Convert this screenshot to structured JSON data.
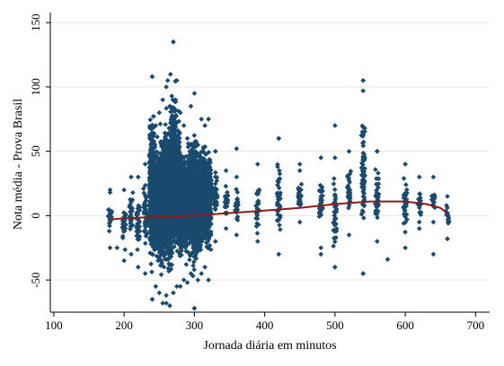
{
  "chart_data": {
    "type": "scatter",
    "title": "",
    "xlabel": "Jornada diária em minutos",
    "ylabel": "Nota média - Prova Brasil",
    "xlim": [
      95,
      720
    ],
    "ylim": [
      -75,
      155
    ],
    "x_ticks": [
      100,
      200,
      300,
      400,
      500,
      600,
      700
    ],
    "y_ticks": [
      -50,
      0,
      50,
      100,
      150
    ],
    "grid": true,
    "legend": "none",
    "colors": {
      "points": "#1a4a6e",
      "fit_line": "#8b1a1a",
      "grid": "#e6e6e6",
      "axis": "#000000"
    },
    "series": [
      {
        "marker": "diamond",
        "clusters": [
          {
            "x": 180,
            "ymin": -25,
            "ymax": 20
          },
          {
            "x": 200,
            "ymin": -35,
            "ymax": 20
          },
          {
            "x": 210,
            "ymin": -30,
            "ymax": 30
          },
          {
            "x": 220,
            "ymin": -40,
            "ymax": 30
          },
          {
            "x": 230,
            "ymin": -45,
            "ymax": 40
          },
          {
            "x": 240,
            "ymin": -65,
            "ymax": 108
          },
          {
            "x": 245,
            "ymin": -55,
            "ymax": 70
          },
          {
            "x": 250,
            "ymin": -60,
            "ymax": 80
          },
          {
            "x": 255,
            "ymin": -68,
            "ymax": 90
          },
          {
            "x": 260,
            "ymin": -62,
            "ymax": 100
          },
          {
            "x": 265,
            "ymin": -70,
            "ymax": 85
          },
          {
            "x": 270,
            "ymin": -60,
            "ymax": 135
          },
          {
            "x": 275,
            "ymin": -55,
            "ymax": 105
          },
          {
            "x": 280,
            "ymin": -55,
            "ymax": 80
          },
          {
            "x": 285,
            "ymin": -50,
            "ymax": 70
          },
          {
            "x": 290,
            "ymin": -52,
            "ymax": 60
          },
          {
            "x": 295,
            "ymin": -45,
            "ymax": 85
          },
          {
            "x": 300,
            "ymin": -72,
            "ymax": 95
          },
          {
            "x": 305,
            "ymin": -50,
            "ymax": 55
          },
          {
            "x": 310,
            "ymin": -45,
            "ymax": 75
          },
          {
            "x": 315,
            "ymin": -40,
            "ymax": 70
          },
          {
            "x": 320,
            "ymin": -50,
            "ymax": 75
          },
          {
            "x": 330,
            "ymin": -20,
            "ymax": 50
          },
          {
            "x": 345,
            "ymin": -10,
            "ymax": 35
          },
          {
            "x": 360,
            "ymin": -15,
            "ymax": 30
          },
          {
            "x": 390,
            "ymin": -20,
            "ymax": 40
          },
          {
            "x": 420,
            "ymin": -30,
            "ymax": 60
          },
          {
            "x": 450,
            "ymin": -5,
            "ymax": 40
          },
          {
            "x": 480,
            "ymin": -25,
            "ymax": 45
          },
          {
            "x": 500,
            "ymin": -40,
            "ymax": 45
          },
          {
            "x": 520,
            "ymin": -15,
            "ymax": 50
          },
          {
            "x": 540,
            "ymin": -45,
            "ymax": 105
          },
          {
            "x": 560,
            "ymin": -20,
            "ymax": 50
          },
          {
            "x": 600,
            "ymin": -25,
            "ymax": 40
          },
          {
            "x": 620,
            "ymin": -10,
            "ymax": 30
          },
          {
            "x": 640,
            "ymin": -5,
            "ymax": 30
          },
          {
            "x": 660,
            "ymin": -18,
            "ymax": 15
          }
        ],
        "outliers": [
          [
            270,
            135
          ],
          [
            262,
            105
          ],
          [
            240,
            108
          ],
          [
            540,
            105
          ],
          [
            540,
            97
          ],
          [
            500,
            70
          ],
          [
            420,
            60
          ],
          [
            360,
            52
          ],
          [
            330,
            50
          ],
          [
            300,
            -72
          ],
          [
            260,
            -68
          ],
          [
            240,
            -65
          ],
          [
            540,
            -45
          ],
          [
            575,
            -34
          ],
          [
            640,
            -30
          ],
          [
            660,
            -18
          ],
          [
            180,
            18
          ],
          [
            190,
            -25
          ],
          [
            480,
            -30
          ],
          [
            500,
            -40
          ],
          [
            560,
            50
          ],
          [
            600,
            40
          ],
          [
            620,
            -5
          ],
          [
            450,
            35
          ]
        ]
      }
    ],
    "fit_line": {
      "x": [
        180,
        200,
        250,
        300,
        350,
        400,
        450,
        500,
        550,
        600,
        630,
        650,
        660
      ],
      "y": [
        -3,
        -2,
        -1,
        0,
        2,
        4,
        6,
        9,
        11,
        11,
        9,
        6,
        2
      ]
    }
  }
}
